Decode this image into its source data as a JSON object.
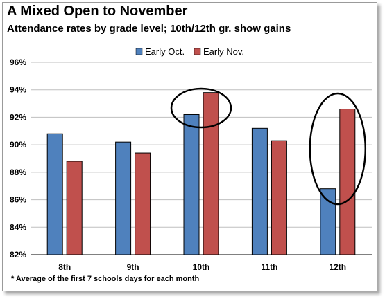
{
  "chart_data": {
    "type": "bar",
    "title": "A Mixed Open to November",
    "subtitle": "Attendance rates by grade level; 10th/12th gr. show gains",
    "categories": [
      "8th",
      "9th",
      "10th",
      "11th",
      "12th"
    ],
    "series": [
      {
        "name": "Early Oct.",
        "color": "#4f81bd",
        "values": [
          90.8,
          90.2,
          92.2,
          91.2,
          86.8
        ]
      },
      {
        "name": "Early Nov.",
        "color": "#c0504d",
        "values": [
          88.8,
          89.4,
          93.8,
          90.3,
          92.6
        ]
      }
    ],
    "ylim": [
      82,
      96
    ],
    "yticks": [
      82,
      84,
      86,
      88,
      90,
      92,
      94,
      96
    ],
    "ytick_labels": [
      "82%",
      "84%",
      "86%",
      "88%",
      "90%",
      "92%",
      "94%",
      "96%"
    ],
    "grid": true,
    "legend_position": "top-center",
    "annotations": [
      {
        "type": "ellipse",
        "category": "10th"
      },
      {
        "type": "ellipse",
        "category": "12th"
      }
    ],
    "footnote": "* Average of the first 7 schools days for each month"
  }
}
